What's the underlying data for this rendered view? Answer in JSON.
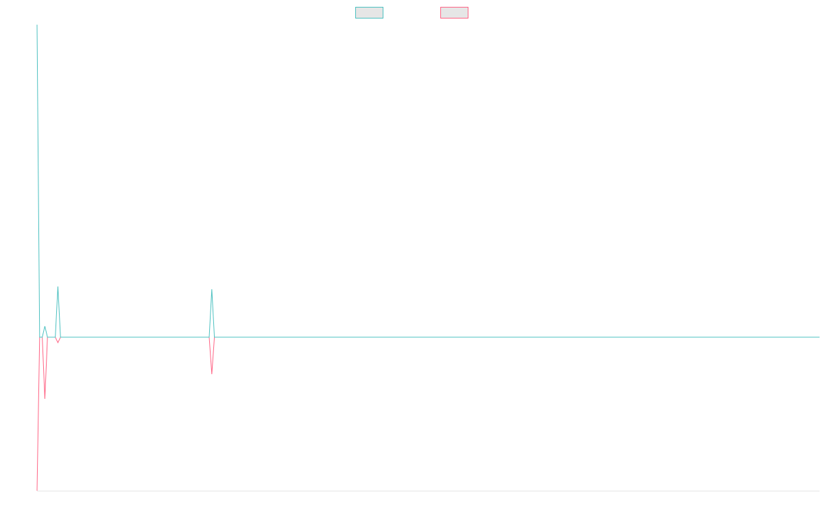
{
  "chart_data": {
    "type": "line",
    "x": [
      0,
      1,
      2,
      3,
      4,
      7,
      8,
      9,
      66,
      67,
      68,
      300
    ],
    "series": [
      {
        "color": "#4bc0c0",
        "values": [
          456,
          0,
          0,
          16,
          0,
          0,
          74,
          0,
          0,
          70,
          0,
          0
        ]
      },
      {
        "color": "#ff6384",
        "values": [
          -224,
          0,
          0,
          -90,
          0,
          0,
          -8,
          0,
          0,
          -54,
          0,
          0
        ]
      }
    ],
    "xlim": [
      0,
      300
    ],
    "ylim": [
      -224,
      456
    ],
    "legend": "top"
  }
}
